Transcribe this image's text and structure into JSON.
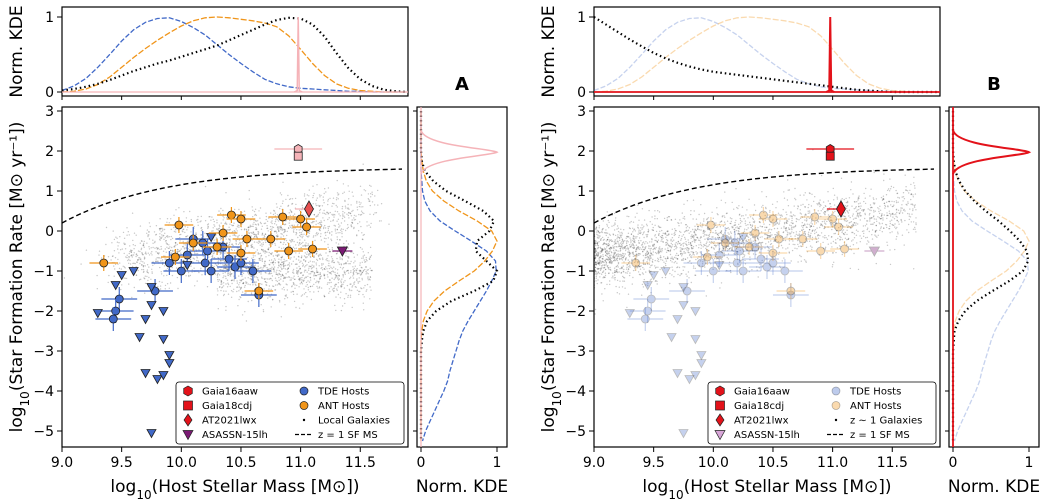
{
  "colors": {
    "tde": "#4169c8",
    "ant": "#f0951a",
    "red": "#e3121a",
    "pink": "#f5b3b8",
    "purple": "#7b1a74",
    "grey": "#777777"
  },
  "chart_data": [
    {
      "panel": "A",
      "type": "scatter",
      "xlabel": "log10(Host Stellar Mass [M⊙])",
      "ylabel": "log10(Star Formation Rate [M⊙ yr−1])",
      "top_ylabel": "Norm. KDE",
      "right_xlabel": "Norm. KDE",
      "xlim": [
        9.0,
        11.9
      ],
      "ylim": [
        -5.4,
        3.1
      ],
      "xticks": [
        "9.0",
        "9.5",
        "10.0",
        "10.5",
        "11.0",
        "11.5"
      ],
      "yticks": [
        "−5",
        "−4",
        "−3",
        "−2",
        "−1",
        "0",
        "1",
        "2",
        "3"
      ],
      "kde_ticks": [
        "0",
        "1"
      ],
      "legend": [
        {
          "label": "Gaia16aaw",
          "marker": "hexagon"
        },
        {
          "label": "TDE Hosts",
          "marker": "circle"
        },
        {
          "label": "Gaia18cdj",
          "marker": "square"
        },
        {
          "label": "ANT Hosts",
          "marker": "circle"
        },
        {
          "label": "AT2021lwx",
          "marker": "diamond"
        },
        {
          "label": "Local Galaxies",
          "marker": "dot"
        },
        {
          "label": "ASASSN-15lh",
          "marker": "triangle"
        },
        {
          "label": "z = 1 SF MS",
          "marker": "dashed"
        }
      ],
      "faded_hosts": false
    },
    {
      "panel": "B",
      "type": "scatter",
      "xlabel": "log10(Host Stellar Mass [M⊙])",
      "ylabel": "log10(Star Formation Rate [M⊙ yr−1])",
      "top_ylabel": "Norm. KDE",
      "right_xlabel": "Norm. KDE",
      "xlim": [
        9.0,
        11.9
      ],
      "ylim": [
        -5.4,
        3.1
      ],
      "xticks": [
        "9.0",
        "9.5",
        "10.0",
        "10.5",
        "11.0",
        "11.5"
      ],
      "yticks": [
        "−5",
        "−4",
        "−3",
        "−2",
        "−1",
        "0",
        "1",
        "2",
        "3"
      ],
      "kde_ticks": [
        "0",
        "1"
      ],
      "legend": [
        {
          "label": "Gaia16aaw",
          "marker": "hexagon"
        },
        {
          "label": "TDE Hosts",
          "marker": "circle"
        },
        {
          "label": "Gaia18cdj",
          "marker": "square"
        },
        {
          "label": "ANT Hosts",
          "marker": "circle"
        },
        {
          "label": "AT2021lwx",
          "marker": "diamond"
        },
        {
          "label": "z ∼ 1 Galaxies",
          "marker": "dot"
        },
        {
          "label": "ASASSN-15lh",
          "marker": "triangle"
        },
        {
          "label": "z = 1 SF MS",
          "marker": "dashed"
        }
      ],
      "faded_hosts": true
    }
  ],
  "points": {
    "tde_detections": [
      [
        9.48,
        -1.7
      ],
      [
        9.45,
        -2.0
      ],
      [
        9.43,
        -2.2
      ],
      [
        9.78,
        -1.5
      ],
      [
        9.9,
        -0.8
      ],
      [
        10.0,
        -1.0
      ],
      [
        10.05,
        -0.6
      ],
      [
        10.1,
        -0.2
      ],
      [
        10.2,
        -0.8
      ],
      [
        10.22,
        -0.5
      ],
      [
        10.25,
        -1.0
      ],
      [
        10.35,
        -0.4
      ],
      [
        10.4,
        -0.7
      ],
      [
        10.45,
        -0.9
      ],
      [
        10.5,
        -0.8
      ],
      [
        10.6,
        -1.0
      ],
      [
        10.65,
        -1.6
      ],
      [
        10.18,
        -0.3
      ]
    ],
    "tde_limits": [
      [
        9.45,
        -1.35
      ],
      [
        9.5,
        -1.1
      ],
      [
        9.6,
        -1.0
      ],
      [
        9.75,
        -1.4
      ],
      [
        9.75,
        -1.85
      ],
      [
        9.3,
        -2.05
      ],
      [
        9.7,
        -2.2
      ],
      [
        9.85,
        -2.0
      ],
      [
        9.65,
        -2.65
      ],
      [
        9.85,
        -2.7
      ],
      [
        9.9,
        -3.1
      ],
      [
        9.9,
        -3.3
      ],
      [
        9.7,
        -3.55
      ],
      [
        9.8,
        -3.7
      ],
      [
        9.85,
        -3.6
      ],
      [
        9.75,
        -5.05
      ],
      [
        10.05,
        -0.85
      ],
      [
        10.25,
        -0.15
      ]
    ],
    "ant_hosts": [
      [
        9.35,
        -0.8
      ],
      [
        9.95,
        -0.65
      ],
      [
        9.98,
        0.15
      ],
      [
        10.1,
        -0.3
      ],
      [
        10.3,
        -0.4
      ],
      [
        10.35,
        -0.05
      ],
      [
        10.42,
        0.4
      ],
      [
        10.5,
        -0.55
      ],
      [
        10.55,
        -0.2
      ],
      [
        10.5,
        0.3
      ],
      [
        10.75,
        -0.2
      ],
      [
        10.9,
        -0.5
      ],
      [
        10.85,
        0.35
      ],
      [
        11.0,
        0.3
      ],
      [
        11.05,
        0.1
      ],
      [
        11.1,
        -0.45
      ],
      [
        10.65,
        -1.5
      ]
    ],
    "gaia16aaw": [
      10.98,
      2.05
    ],
    "gaia18cdj": [
      10.98,
      1.87
    ],
    "at2021lwx": [
      11.07,
      0.55
    ],
    "asassn15lh": [
      11.35,
      -0.5
    ]
  },
  "kde": {
    "mass_x": [
      9.0,
      9.1,
      9.2,
      9.3,
      9.4,
      9.5,
      9.6,
      9.7,
      9.8,
      9.9,
      10.0,
      10.1,
      10.2,
      10.3,
      10.4,
      10.5,
      10.6,
      10.7,
      10.8,
      10.9,
      11.0,
      11.1,
      11.2,
      11.3,
      11.4,
      11.5,
      11.6,
      11.7,
      11.8,
      11.9
    ],
    "mass_tde": [
      0.02,
      0.08,
      0.18,
      0.33,
      0.5,
      0.68,
      0.83,
      0.93,
      0.98,
      0.99,
      0.94,
      0.86,
      0.76,
      0.63,
      0.5,
      0.38,
      0.27,
      0.17,
      0.11,
      0.07,
      0.05,
      0.04,
      0.03,
      0.02,
      0.01,
      0.01,
      0.0,
      0.0,
      0.0,
      0.0
    ],
    "mass_ant": [
      0.0,
      0.01,
      0.04,
      0.1,
      0.2,
      0.33,
      0.46,
      0.58,
      0.69,
      0.79,
      0.88,
      0.95,
      0.99,
      1.0,
      0.99,
      0.97,
      0.95,
      0.92,
      0.87,
      0.75,
      0.57,
      0.38,
      0.22,
      0.11,
      0.05,
      0.02,
      0.01,
      0.0,
      0.0,
      0.0
    ],
    "mass_local": [
      0.02,
      0.04,
      0.07,
      0.11,
      0.16,
      0.22,
      0.28,
      0.33,
      0.38,
      0.42,
      0.47,
      0.52,
      0.57,
      0.62,
      0.69,
      0.76,
      0.83,
      0.9,
      0.96,
      0.99,
      0.98,
      0.9,
      0.74,
      0.52,
      0.32,
      0.17,
      0.08,
      0.03,
      0.01,
      0.0
    ],
    "mass_z1": [
      1.0,
      0.9,
      0.8,
      0.7,
      0.61,
      0.52,
      0.45,
      0.39,
      0.34,
      0.3,
      0.27,
      0.25,
      0.23,
      0.21,
      0.19,
      0.17,
      0.15,
      0.13,
      0.11,
      0.09,
      0.07,
      0.05,
      0.03,
      0.02,
      0.01,
      0.0,
      0.0,
      0.0,
      0.0,
      0.0
    ],
    "sfr_y": [
      3.0,
      2.75,
      2.5,
      2.25,
      2.0,
      1.75,
      1.5,
      1.25,
      1.0,
      0.75,
      0.5,
      0.25,
      0.0,
      -0.25,
      -0.5,
      -0.75,
      -1.0,
      -1.25,
      -1.5,
      -1.75,
      -2.0,
      -2.25,
      -2.5,
      -2.75,
      -3.0,
      -3.25,
      -3.5,
      -3.75,
      -4.0,
      -4.25,
      -4.5,
      -4.75,
      -5.0,
      -5.25
    ],
    "sfr_tde": [
      0.0,
      0.0,
      0.0,
      0.0,
      0.0,
      0.0,
      0.0,
      0.01,
      0.02,
      0.05,
      0.12,
      0.25,
      0.45,
      0.66,
      0.86,
      0.98,
      0.99,
      0.93,
      0.86,
      0.78,
      0.7,
      0.62,
      0.55,
      0.5,
      0.46,
      0.42,
      0.38,
      0.35,
      0.3,
      0.24,
      0.18,
      0.12,
      0.06,
      0.02
    ],
    "sfr_ant": [
      0.0,
      0.0,
      0.0,
      0.0,
      0.0,
      0.01,
      0.03,
      0.07,
      0.15,
      0.3,
      0.5,
      0.74,
      0.93,
      1.0,
      0.94,
      0.84,
      0.7,
      0.5,
      0.31,
      0.17,
      0.08,
      0.03,
      0.01,
      0.0,
      0.0,
      0.0,
      0.0,
      0.0,
      0.0,
      0.0,
      0.0,
      0.0,
      0.0,
      0.0
    ],
    "sfr_local": [
      0.0,
      0.0,
      0.0,
      0.0,
      0.0,
      0.01,
      0.05,
      0.16,
      0.33,
      0.58,
      0.82,
      0.96,
      0.9,
      0.74,
      0.72,
      0.86,
      1.0,
      0.95,
      0.7,
      0.4,
      0.2,
      0.08,
      0.03,
      0.01,
      0.0,
      0.0,
      0.0,
      0.0,
      0.0,
      0.0,
      0.0,
      0.0,
      0.0,
      0.0
    ],
    "sfr_z1": [
      0.0,
      0.0,
      0.0,
      0.0,
      0.0,
      0.01,
      0.03,
      0.08,
      0.16,
      0.28,
      0.43,
      0.6,
      0.75,
      0.88,
      0.97,
      0.99,
      0.92,
      0.74,
      0.52,
      0.31,
      0.16,
      0.07,
      0.02,
      0.01,
      0.0,
      0.0,
      0.0,
      0.0,
      0.0,
      0.0,
      0.0,
      0.0,
      0.0,
      0.0
    ]
  },
  "labels": {
    "panel_a": "A",
    "panel_b": "B"
  }
}
